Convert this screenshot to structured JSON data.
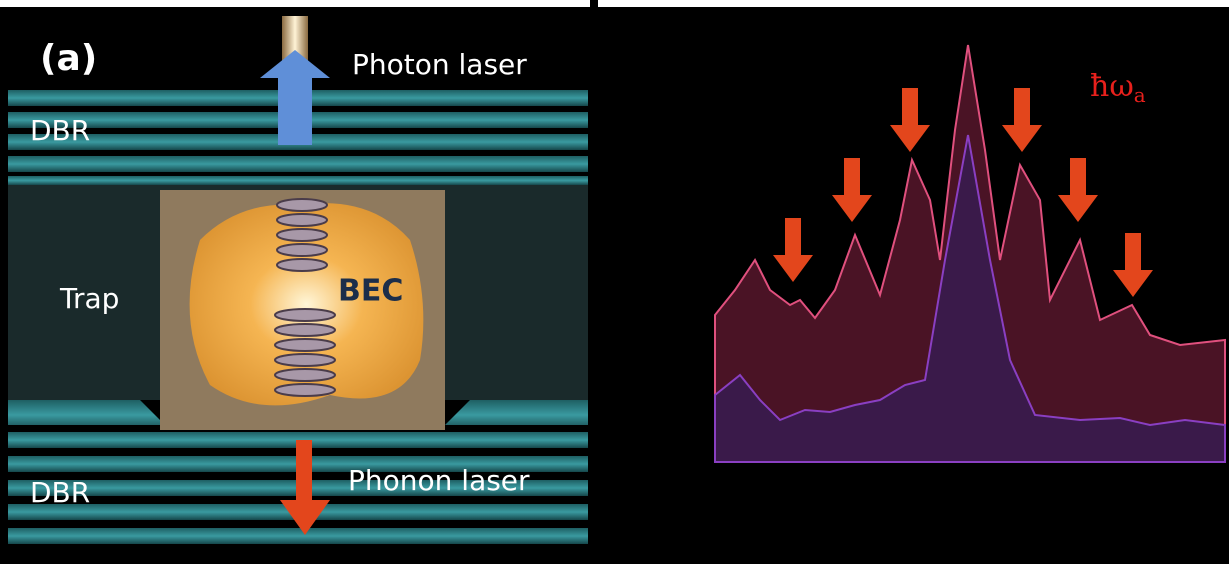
{
  "panel_label": "(a)",
  "diagram": {
    "top_arrow_label": "Photon laser",
    "top_mirror_label": "DBR",
    "trap_label": "Trap",
    "condensate_label": "BEC",
    "bottom_arrow_label": "Phonon laser",
    "bottom_mirror_label": "DBR"
  },
  "spectrum": {
    "energy_symbol": "ħω",
    "energy_subscript": "a"
  }
}
